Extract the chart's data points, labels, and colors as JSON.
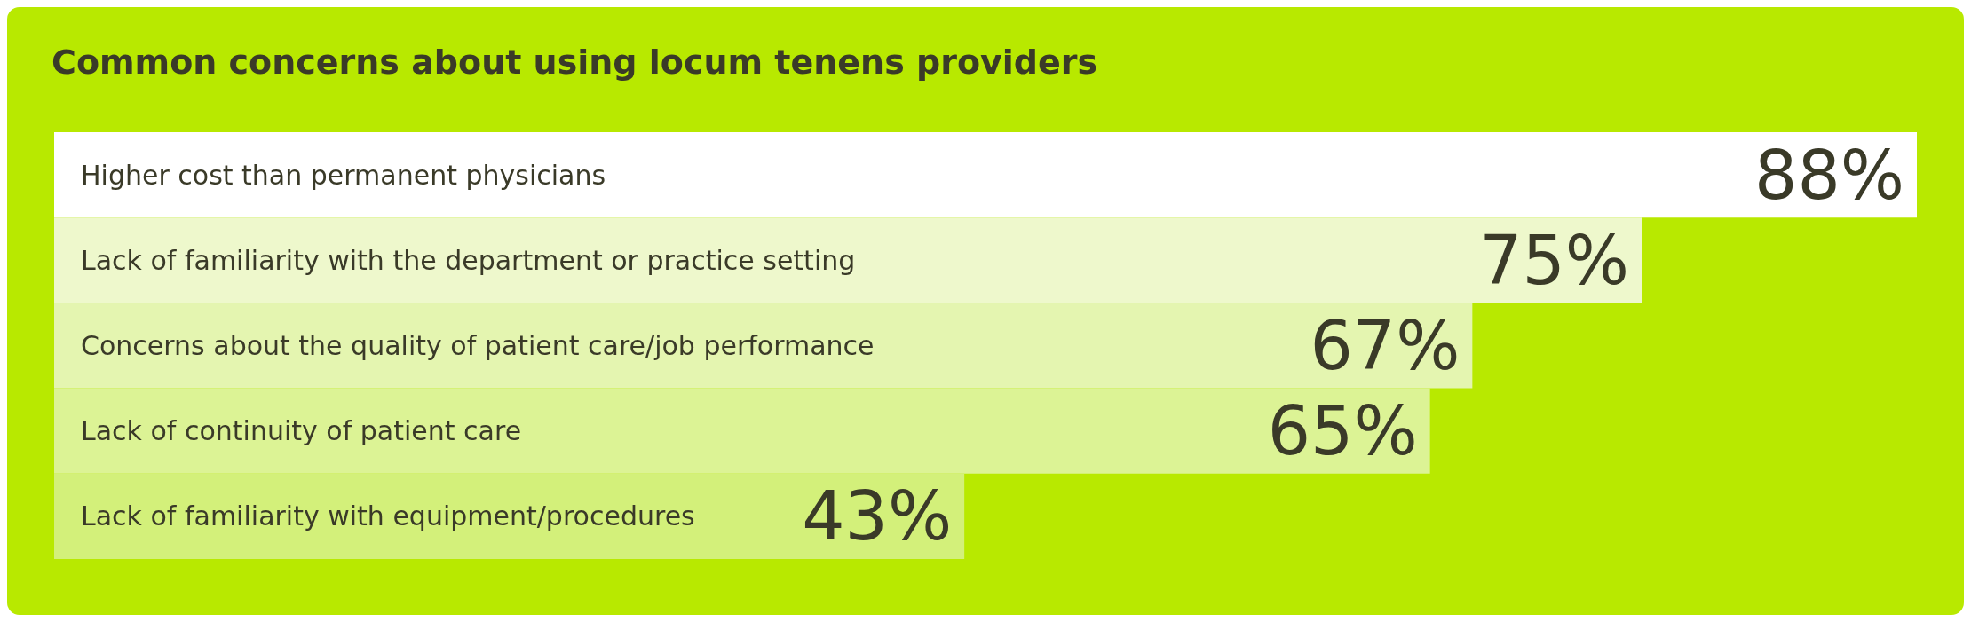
{
  "chart_data": {
    "type": "bar",
    "orientation": "horizontal",
    "title": "Common concerns about using locum tenens providers",
    "categories": [
      "Higher cost than permanent physicians",
      "Lack of familiarity with the department or practice setting",
      "Concerns about the quality of patient care/job performance",
      "Lack of continuity of patient care",
      "Lack of familiarity with equipment/procedures"
    ],
    "values": [
      88,
      75,
      67,
      65,
      43
    ],
    "colors": [
      "#ffffff",
      "#eef8cc",
      "#e4f5b0",
      "#dcf395",
      "#d3f07a"
    ],
    "value_labels": [
      "88%",
      "75%",
      "67%",
      "65%",
      "43%"
    ]
  }
}
